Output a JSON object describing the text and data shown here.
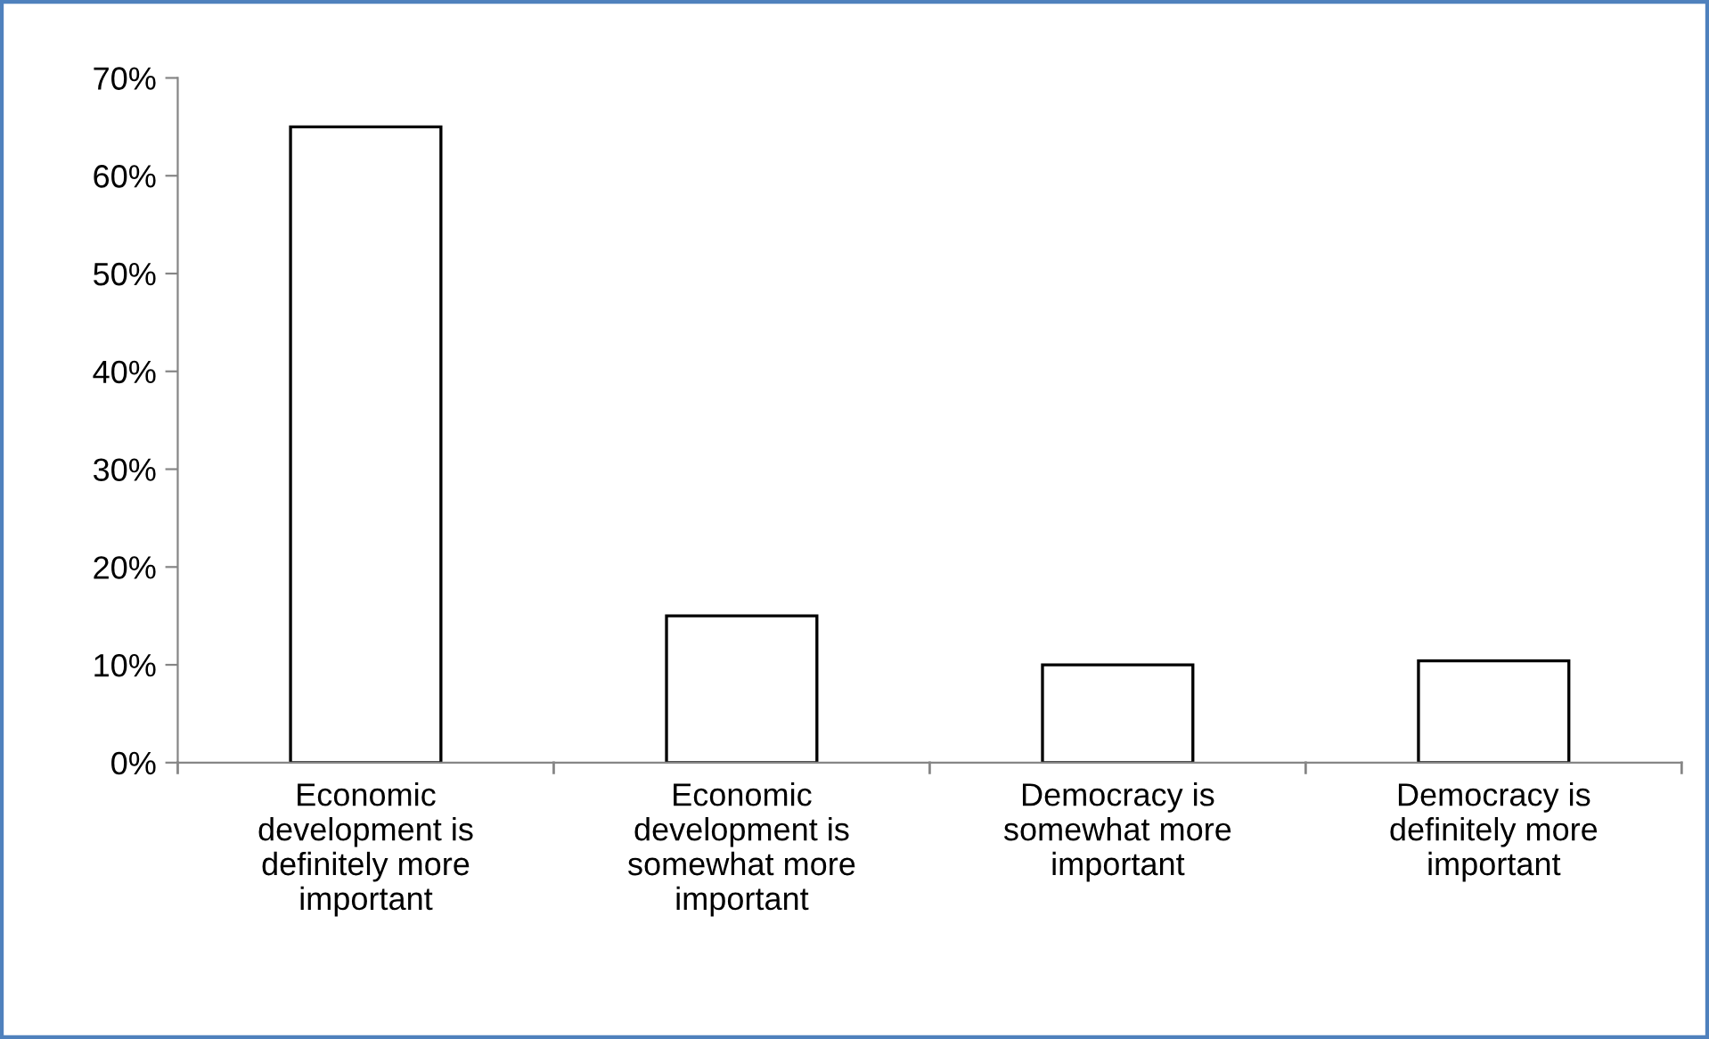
{
  "chart_data": {
    "type": "bar",
    "categories": [
      "Economic development is definitely more important",
      "Economic development is somewhat more important",
      "Democracy is somewhat more important",
      "Democracy is definitely more important"
    ],
    "values": [
      65,
      15,
      10,
      10.4
    ],
    "color": "#ffffff",
    "ylim": [
      0,
      70
    ],
    "yticks": [
      {
        "value": 0,
        "label": "0%"
      },
      {
        "value": 10,
        "label": "10%"
      },
      {
        "value": 20,
        "label": "20%"
      },
      {
        "value": 30,
        "label": "30%"
      },
      {
        "value": 40,
        "label": "40%"
      },
      {
        "value": 50,
        "label": "50%"
      },
      {
        "value": 60,
        "label": "60%"
      },
      {
        "value": 70,
        "label": "70%"
      }
    ],
    "grid": false,
    "legend": false
  }
}
